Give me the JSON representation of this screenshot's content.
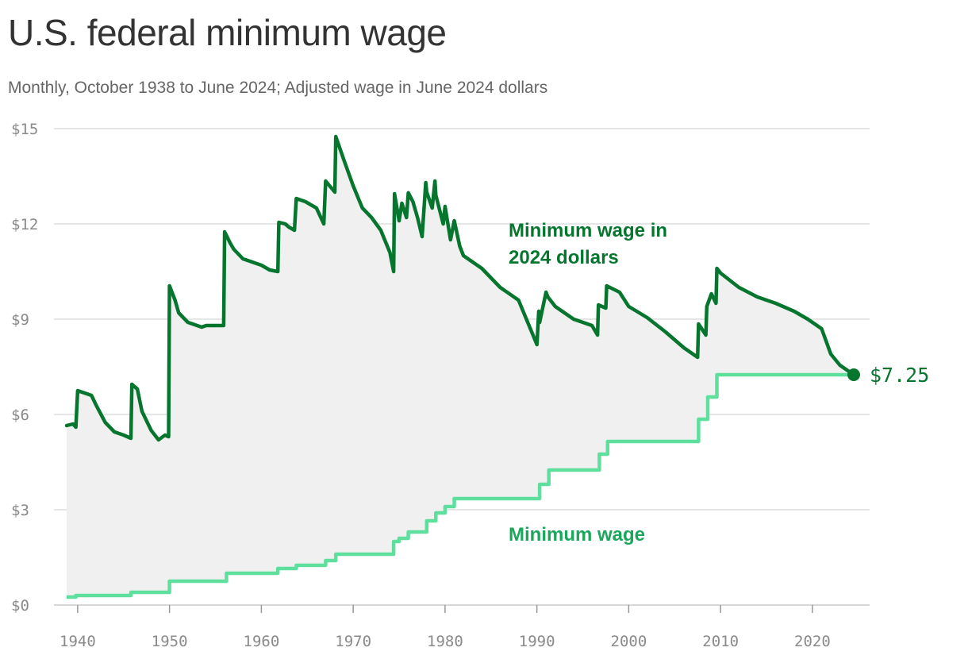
{
  "title": "U.S. federal minimum wage",
  "subtitle": "Monthly, October 1938 to June 2024; Adjusted wage in June 2024 dollars",
  "colors": {
    "adjusted": "#06762f",
    "nominal": "#5fdf9e",
    "nominal_label": "#1aa65b",
    "gap_fill": "#f0f0f0",
    "grid": "#dddddd",
    "tick_text": "#8a8a8a"
  },
  "chart_data": {
    "type": "line",
    "title": "U.S. federal minimum wage",
    "subtitle": "Monthly, October 1938 to June 2024; Adjusted wage in June 2024 dollars",
    "xlim": [
      1938.8,
      2024.5
    ],
    "ylim": [
      0,
      15
    ],
    "x_ticks": [
      {
        "value": 1940,
        "label": "1940"
      },
      {
        "value": 1950,
        "label": "1950"
      },
      {
        "value": 1960,
        "label": "1960"
      },
      {
        "value": 1970,
        "label": "1970"
      },
      {
        "value": 1980,
        "label": "1980"
      },
      {
        "value": 1990,
        "label": "1990"
      },
      {
        "value": 2000,
        "label": "2000"
      },
      {
        "value": 2010,
        "label": "2010"
      },
      {
        "value": 2020,
        "label": "2020"
      }
    ],
    "y_ticks": [
      {
        "value": 0,
        "label": "$0"
      },
      {
        "value": 3,
        "label": "$3"
      },
      {
        "value": 6,
        "label": "$6"
      },
      {
        "value": 9,
        "label": "$9"
      },
      {
        "value": 12,
        "label": "$12"
      },
      {
        "value": 15,
        "label": "$15"
      }
    ],
    "grid": true,
    "shaded_between_series": true,
    "end_label": "$7.25",
    "series": [
      {
        "name": "Minimum wage in 2024 dollars",
        "label_lines": [
          "Minimum wage in",
          "2024 dollars"
        ],
        "x": [
          1938.8,
          1939.5,
          1939.8,
          1940.0,
          1941.5,
          1942.0,
          1943.0,
          1944.0,
          1945.0,
          1945.8,
          1945.9,
          1946.5,
          1947.0,
          1948.0,
          1948.8,
          1949.5,
          1949.9,
          1950.0,
          1950.6,
          1951.0,
          1952.0,
          1953.5,
          1954.0,
          1955.0,
          1955.9,
          1956.0,
          1956.6,
          1957.0,
          1958.0,
          1959.0,
          1960.0,
          1960.9,
          1961.8,
          1961.9,
          1962.6,
          1963.0,
          1963.6,
          1963.8,
          1964.8,
          1966.0,
          1966.8,
          1967.0,
          1968.0,
          1968.1,
          1969.0,
          1970.0,
          1971.0,
          1972.0,
          1973.0,
          1974.0,
          1974.4,
          1974.5,
          1975.0,
          1975.3,
          1975.8,
          1976.0,
          1976.5,
          1977.0,
          1977.5,
          1977.9,
          1978.0,
          1978.6,
          1978.9,
          1979.0,
          1979.8,
          1980.0,
          1980.6,
          1981.0,
          1981.6,
          1982.0,
          1984.0,
          1986.0,
          1988.0,
          1990.0,
          1990.2,
          1990.3,
          1991.0,
          1991.2,
          1992.0,
          1994.0,
          1996.0,
          1996.6,
          1996.7,
          1997.5,
          1997.6,
          1999.0,
          2000.0,
          2002.0,
          2004.0,
          2006.0,
          2007.5,
          2007.6,
          2008.4,
          2008.5,
          2009.0,
          2009.5,
          2009.6,
          2010.0,
          2012.0,
          2014.0,
          2016.0,
          2018.0,
          2019.5,
          2020.0,
          2021.0,
          2022.0,
          2023.0,
          2024.5
        ],
        "y": [
          5.65,
          5.7,
          5.6,
          6.75,
          6.6,
          6.3,
          5.75,
          5.45,
          5.35,
          5.25,
          6.95,
          6.8,
          6.1,
          5.5,
          5.2,
          5.35,
          5.3,
          10.05,
          9.6,
          9.2,
          8.9,
          8.75,
          8.8,
          8.8,
          8.8,
          11.75,
          11.4,
          11.2,
          10.9,
          10.8,
          10.7,
          10.55,
          10.5,
          12.05,
          12.0,
          11.9,
          11.8,
          12.8,
          12.7,
          12.5,
          12.0,
          13.35,
          13.0,
          14.75,
          14.0,
          13.2,
          12.5,
          12.2,
          11.8,
          11.1,
          10.5,
          12.95,
          12.1,
          12.65,
          12.2,
          12.98,
          12.7,
          12.2,
          11.6,
          13.3,
          13.0,
          12.5,
          13.35,
          12.9,
          12.0,
          12.55,
          11.5,
          12.1,
          11.3,
          11.0,
          10.6,
          10.0,
          9.6,
          8.2,
          9.25,
          8.9,
          9.85,
          9.7,
          9.4,
          9.0,
          8.8,
          8.5,
          9.45,
          9.35,
          10.05,
          9.85,
          9.4,
          9.05,
          8.6,
          8.1,
          7.8,
          8.85,
          8.5,
          9.4,
          9.8,
          9.5,
          10.6,
          10.45,
          10.0,
          9.7,
          9.5,
          9.25,
          9.0,
          8.9,
          8.7,
          7.9,
          7.55,
          7.25
        ]
      },
      {
        "name": "Minimum wage",
        "label_lines": [
          "Minimum wage"
        ],
        "step": true,
        "x": [
          1938.8,
          1939.8,
          1945.8,
          1950.0,
          1956.2,
          1961.8,
          1963.8,
          1967.0,
          1968.1,
          1974.4,
          1975.0,
          1976.0,
          1978.0,
          1979.0,
          1980.0,
          1981.0,
          1990.3,
          1991.3,
          1996.8,
          1997.7,
          2007.6,
          2008.6,
          2009.6,
          2024.5
        ],
        "y": [
          0.25,
          0.3,
          0.4,
          0.75,
          1.0,
          1.15,
          1.25,
          1.4,
          1.6,
          2.0,
          2.1,
          2.3,
          2.65,
          2.9,
          3.1,
          3.35,
          3.8,
          4.25,
          4.75,
          5.15,
          5.85,
          6.55,
          7.25,
          7.25
        ]
      }
    ]
  }
}
